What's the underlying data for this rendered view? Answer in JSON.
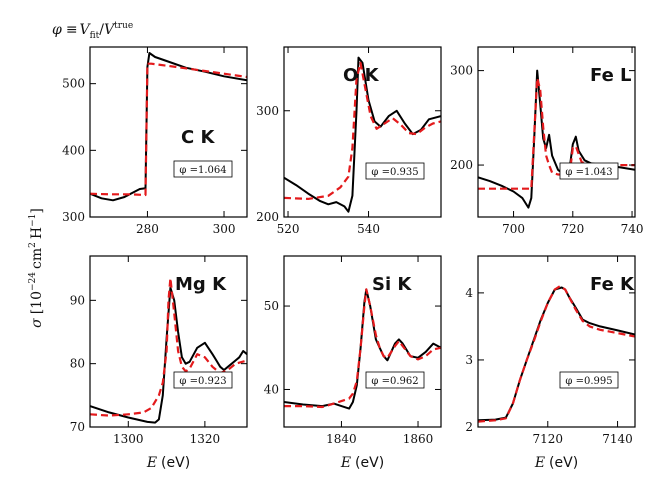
{
  "header_formula": "φ ≡ V_fit / V^true",
  "header": {
    "phi": "φ",
    "eq": "≡",
    "V1": "V",
    "fit": "fit",
    "slash": "/",
    "V2": "V",
    "true": "true"
  },
  "ylabel": {
    "sigma": "σ",
    "lb": "[",
    "ten": "10",
    "exp1": "−24",
    "cm": "cm",
    "exp2": "2",
    "H": "H",
    "exp3": "−1",
    "rb": "]"
  },
  "xlabel": {
    "E": "E",
    "unit": "(eV)"
  },
  "colors": {
    "measured": "#000000",
    "fit": "#e31a1c"
  },
  "chart_data": [
    {
      "type": "line",
      "title": "C K",
      "phi_label": "φ =1.064",
      "xlim": [
        265,
        306
      ],
      "ylim": [
        300,
        555
      ],
      "xticks": [
        280,
        300
      ],
      "xticklabels": [
        "280",
        "300"
      ],
      "yticks": [
        300,
        400,
        500
      ],
      "yticklabels": [
        "300",
        "400",
        "500"
      ],
      "xlabel": "",
      "ylabel": "",
      "series": [
        {
          "name": "measured",
          "style": "solid",
          "x": [
            265,
            268,
            271,
            274,
            276,
            278,
            279.5,
            280,
            280.5,
            282,
            285,
            290,
            295,
            300,
            306
          ],
          "y": [
            335,
            328,
            325,
            330,
            336,
            342,
            343,
            525,
            546,
            540,
            534,
            524,
            518,
            511,
            505
          ]
        },
        {
          "name": "fit",
          "style": "dashed",
          "x": [
            265,
            270,
            275,
            279.5,
            280,
            281,
            285,
            290,
            295,
            300,
            306
          ],
          "y": [
            335,
            334,
            334,
            333,
            530,
            530,
            527,
            523,
            519,
            515,
            510
          ]
        }
      ]
    },
    {
      "type": "line",
      "title": "O K",
      "phi_label": "φ =0.935",
      "xlim": [
        519,
        558
      ],
      "ylim": [
        200,
        360
      ],
      "xticks": [
        520,
        540
      ],
      "xticklabels": [
        "520",
        "540"
      ],
      "yticks": [
        200,
        300
      ],
      "yticklabels": [
        "200",
        "300"
      ],
      "xlabel": "",
      "ylabel": "",
      "series": [
        {
          "name": "measured",
          "style": "solid",
          "x": [
            519,
            522,
            525,
            528,
            530,
            532,
            534,
            535,
            536,
            537,
            537.5,
            538.5,
            540,
            541.5,
            543,
            545,
            547,
            549,
            551,
            553,
            555,
            558
          ],
          "y": [
            237,
            230,
            222,
            215,
            212,
            214,
            210,
            205,
            220,
            300,
            350,
            345,
            310,
            290,
            285,
            295,
            300,
            288,
            278,
            282,
            292,
            295
          ]
        },
        {
          "name": "fit",
          "style": "dashed",
          "x": [
            519,
            525,
            530,
            533,
            535,
            536,
            537,
            538,
            539,
            540.5,
            542,
            544,
            546,
            548,
            550,
            552,
            554,
            556,
            558
          ],
          "y": [
            218,
            217,
            220,
            228,
            238,
            265,
            330,
            345,
            325,
            295,
            283,
            288,
            293,
            287,
            279,
            278,
            284,
            288,
            290
          ]
        }
      ]
    },
    {
      "type": "line",
      "title": "Fe L",
      "phi_label": "φ =1.043",
      "xlim": [
        688,
        741
      ],
      "ylim": [
        145,
        325
      ],
      "xticks": [
        700,
        720,
        740
      ],
      "xticklabels": [
        "700",
        "720",
        "740"
      ],
      "yticks": [
        200,
        300
      ],
      "yticklabels": [
        "200",
        "300"
      ],
      "xlabel": "",
      "ylabel": "",
      "series": [
        {
          "name": "measured",
          "style": "solid",
          "x": [
            688,
            692,
            696,
            700,
            703,
            705,
            706,
            707,
            708,
            709,
            710,
            711,
            712,
            713,
            715,
            717,
            718,
            719,
            720,
            721,
            722,
            724,
            726,
            730,
            735,
            741
          ],
          "y": [
            187,
            183,
            178,
            172,
            165,
            155,
            165,
            230,
            300,
            265,
            228,
            218,
            232,
            210,
            195,
            190,
            190,
            198,
            222,
            230,
            215,
            205,
            202,
            200,
            198,
            195
          ]
        },
        {
          "name": "fit",
          "style": "dashed",
          "x": [
            688,
            695,
            700,
            704,
            706,
            707,
            708,
            709,
            710,
            711,
            712,
            713,
            715,
            718,
            719,
            720,
            721,
            723,
            726,
            730,
            735,
            741
          ],
          "y": [
            175,
            175,
            175,
            175,
            175,
            235,
            292,
            280,
            240,
            210,
            200,
            192,
            190,
            190,
            192,
            218,
            220,
            203,
            200,
            200,
            200,
            200
          ]
        }
      ]
    },
    {
      "type": "line",
      "title": "Mg K",
      "phi_label": "φ =0.923",
      "xlim": [
        1290,
        1331
      ],
      "ylim": [
        70,
        97
      ],
      "xticks": [
        1300,
        1320
      ],
      "xticklabels": [
        "1300",
        "1320"
      ],
      "yticks": [
        70,
        80,
        90
      ],
      "yticklabels": [
        "70",
        "80",
        "90"
      ],
      "xlabel": "E (eV)",
      "ylabel": "",
      "series": [
        {
          "name": "measured",
          "style": "solid",
          "x": [
            1290,
            1295,
            1300,
            1305,
            1307,
            1308,
            1309,
            1310,
            1311,
            1312,
            1313,
            1314,
            1315,
            1316,
            1318,
            1320,
            1322,
            1323,
            1324,
            1325,
            1326,
            1328,
            1329,
            1330,
            1331
          ],
          "y": [
            73.3,
            72.3,
            71.5,
            70.8,
            70.7,
            71.2,
            75.0,
            84.0,
            92.0,
            90.0,
            85.0,
            81.0,
            80.0,
            80.3,
            82.5,
            83.3,
            81.5,
            80.5,
            79.5,
            79.0,
            79.5,
            80.5,
            81.0,
            82.0,
            81.5
          ]
        },
        {
          "name": "fit",
          "style": "dashed",
          "x": [
            1290,
            1295,
            1300,
            1304,
            1306,
            1308,
            1309,
            1310,
            1310.5,
            1311,
            1312,
            1313,
            1314,
            1315,
            1316,
            1318,
            1320,
            1322,
            1324,
            1326,
            1328,
            1331
          ],
          "y": [
            72.0,
            71.8,
            72.0,
            72.3,
            73.0,
            75.0,
            77.0,
            82.0,
            90.0,
            93.5,
            88.0,
            82.0,
            79.5,
            78.8,
            79.2,
            81.5,
            81.0,
            79.5,
            78.5,
            79.0,
            80.0,
            80.5
          ]
        }
      ]
    },
    {
      "type": "line",
      "title": "Si K",
      "phi_label": "φ =0.962",
      "xlim": [
        1825,
        1866
      ],
      "ylim": [
        35.5,
        56
      ],
      "xticks": [
        1840,
        1860
      ],
      "xticklabels": [
        "1840",
        "1860"
      ],
      "yticks": [
        40,
        50
      ],
      "yticklabels": [
        "40",
        "50"
      ],
      "xlabel": "E (eV)",
      "ylabel": "",
      "series": [
        {
          "name": "measured",
          "style": "solid",
          "x": [
            1825,
            1830,
            1835,
            1838,
            1840,
            1842,
            1843,
            1844,
            1845,
            1846,
            1846.5,
            1847.5,
            1849,
            1850,
            1851,
            1852,
            1854,
            1855,
            1856,
            1858,
            1860,
            1862,
            1864,
            1866
          ],
          "y": [
            38.5,
            38.2,
            38.0,
            38.3,
            38.0,
            37.7,
            38.5,
            40.5,
            45.0,
            50.5,
            52.0,
            50.0,
            46.0,
            45.0,
            44.0,
            43.5,
            45.5,
            46.0,
            45.5,
            44.0,
            43.8,
            44.5,
            45.5,
            45.0
          ]
        },
        {
          "name": "fit",
          "style": "dashed",
          "x": [
            1825,
            1830,
            1835,
            1838,
            1840,
            1842,
            1843,
            1844,
            1845,
            1846,
            1846.5,
            1847.5,
            1849,
            1850,
            1851,
            1852,
            1854,
            1855,
            1856,
            1858,
            1860,
            1862,
            1864,
            1866
          ],
          "y": [
            38.0,
            38.0,
            37.9,
            38.3,
            38.6,
            38.9,
            39.5,
            41.0,
            45.0,
            50.0,
            52.0,
            50.0,
            46.5,
            45.0,
            44.0,
            43.8,
            45.2,
            45.8,
            45.2,
            44.0,
            43.6,
            44.0,
            44.8,
            45.0
          ]
        }
      ]
    },
    {
      "type": "line",
      "title": "Fe K",
      "phi_label": "φ =0.995",
      "xlim": [
        7100,
        7145
      ],
      "ylim": [
        2,
        4.55
      ],
      "xticks": [
        7120,
        7140
      ],
      "xticklabels": [
        "7120",
        "7140"
      ],
      "yticks": [
        2,
        3,
        4
      ],
      "yticklabels": [
        "2",
        "3",
        "4"
      ],
      "xlabel": "E (eV)",
      "ylabel": "",
      "series": [
        {
          "name": "measured",
          "style": "solid",
          "x": [
            7100,
            7105,
            7108,
            7110,
            7112,
            7114,
            7116,
            7118,
            7120,
            7122,
            7124,
            7125,
            7126,
            7128,
            7130,
            7132,
            7135,
            7140,
            7145
          ],
          "y": [
            2.1,
            2.11,
            2.14,
            2.35,
            2.7,
            3.0,
            3.3,
            3.6,
            3.85,
            4.05,
            4.08,
            4.05,
            3.95,
            3.78,
            3.6,
            3.55,
            3.5,
            3.44,
            3.38
          ]
        },
        {
          "name": "fit",
          "style": "dashed",
          "x": [
            7100,
            7105,
            7108,
            7110,
            7112,
            7114,
            7116,
            7118,
            7120,
            7122,
            7123.5,
            7125,
            7126,
            7128,
            7130,
            7132,
            7135,
            7140,
            7145
          ],
          "y": [
            2.08,
            2.1,
            2.13,
            2.35,
            2.7,
            3.0,
            3.28,
            3.58,
            3.85,
            4.05,
            4.1,
            4.05,
            3.95,
            3.75,
            3.58,
            3.5,
            3.45,
            3.4,
            3.35
          ]
        }
      ]
    }
  ]
}
